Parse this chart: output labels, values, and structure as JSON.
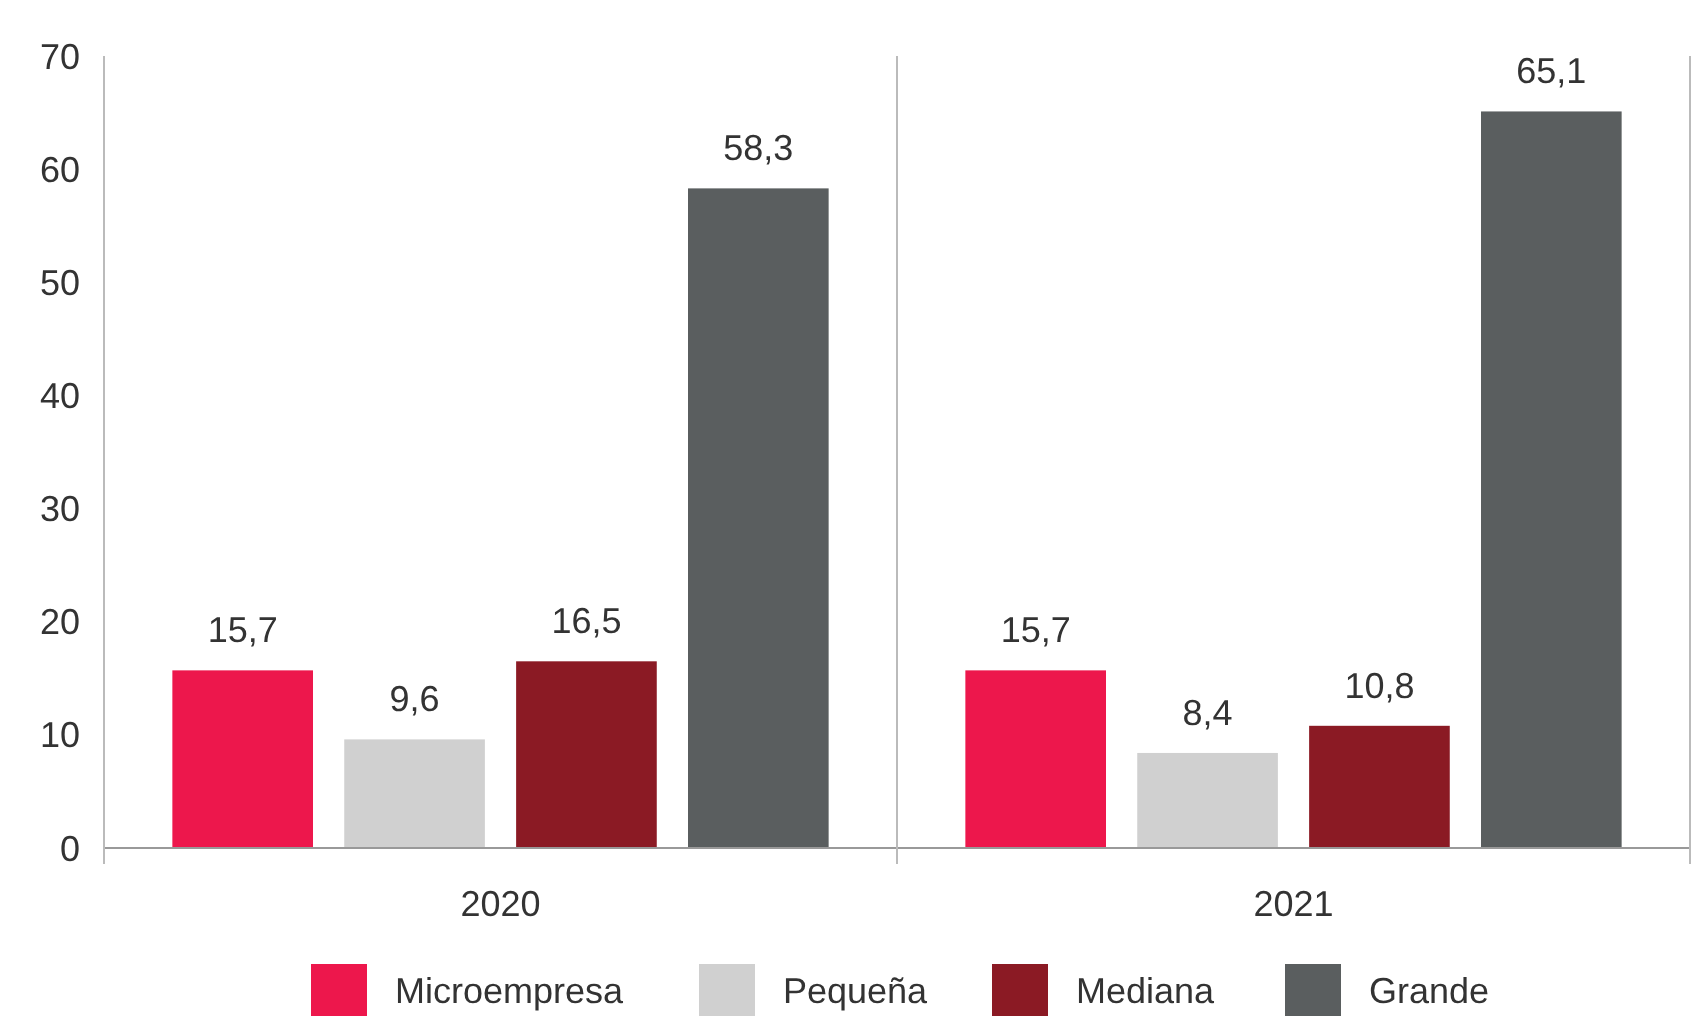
{
  "chart_data": {
    "type": "bar",
    "categories": [
      "2020",
      "2021"
    ],
    "series": [
      {
        "name": "Microempresa",
        "color": "#ed174c",
        "values": [
          15.7,
          15.7
        ],
        "value_labels": [
          "15,7",
          "15,7"
        ]
      },
      {
        "name": "Pequeña",
        "color": "#d0d0d0",
        "values": [
          9.6,
          8.4
        ],
        "value_labels": [
          "9,6",
          "8,4"
        ]
      },
      {
        "name": "Mediana",
        "color": "#8b1a24",
        "values": [
          16.5,
          10.8
        ],
        "value_labels": [
          "16,5",
          "10,8"
        ]
      },
      {
        "name": "Grande",
        "color": "#5a5e5f",
        "values": [
          58.3,
          65.1
        ],
        "value_labels": [
          "58,3",
          "65,1"
        ]
      }
    ],
    "ylim": [
      0,
      70
    ],
    "yticks": [
      0,
      10,
      20,
      30,
      40,
      50,
      60,
      70
    ],
    "grid": false,
    "legend": "bottom"
  }
}
